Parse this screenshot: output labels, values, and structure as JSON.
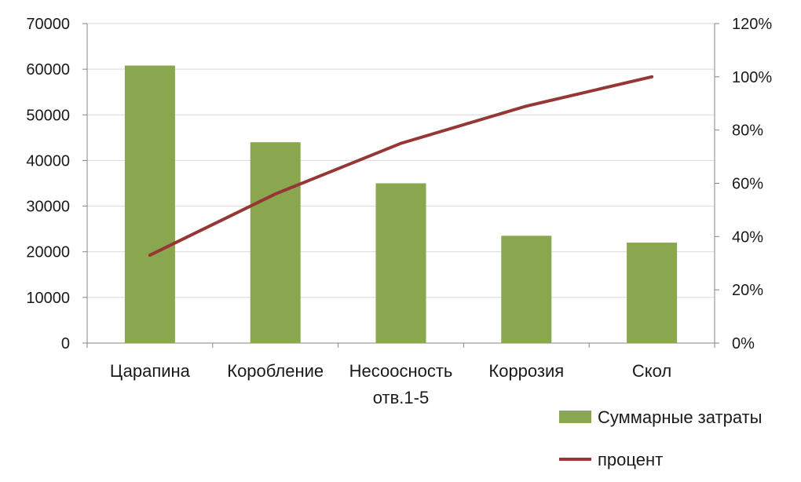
{
  "chart_data": {
    "type": "bar",
    "categories": [
      [
        "Царапина"
      ],
      [
        "Коробление"
      ],
      [
        "Несоосность",
        "отв.1-5"
      ],
      [
        "Коррозия"
      ],
      [
        "Скол"
      ]
    ],
    "category_labels": [
      "Царапина",
      "Коробление",
      "Несоосность отв.1-5",
      "Коррозия",
      "Скол"
    ],
    "series": [
      {
        "name": "Суммарные затраты",
        "type": "bar",
        "axis": "left",
        "color": "#8aa64f",
        "values": [
          60800,
          44000,
          35000,
          23500,
          22000
        ]
      },
      {
        "name": "процент",
        "type": "line",
        "axis": "right",
        "color": "#953735",
        "values": [
          33,
          56,
          75,
          89,
          100
        ]
      }
    ],
    "left_axis": {
      "min": 0,
      "max": 70000,
      "step": 10000,
      "tick_labels": [
        "0",
        "10000",
        "20000",
        "30000",
        "40000",
        "50000",
        "60000",
        "70000"
      ]
    },
    "right_axis": {
      "min": 0,
      "max": 120,
      "step": 20,
      "tick_labels": [
        "0%",
        "20%",
        "40%",
        "60%",
        "80%",
        "100%",
        "120%"
      ]
    },
    "grid": true,
    "legend_position": "bottom-right"
  }
}
